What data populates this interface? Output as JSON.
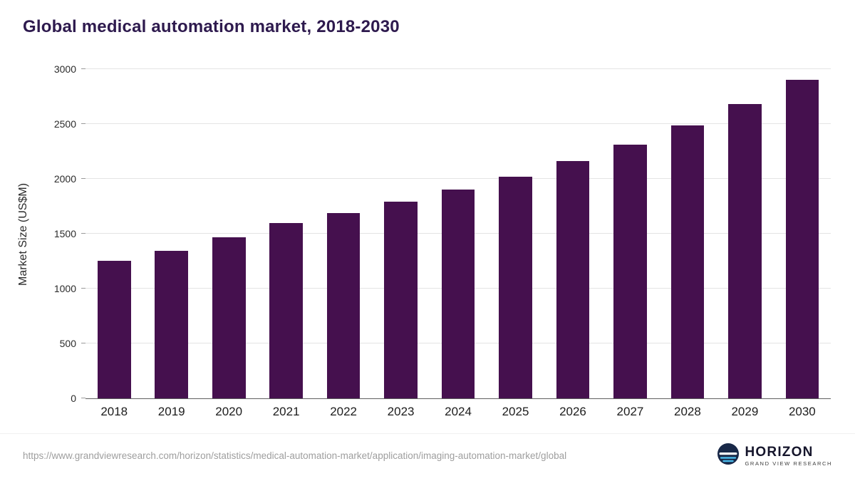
{
  "title": "Global medical automation market, 2018-2030",
  "colors": {
    "bar": "#45104e",
    "title_text": "#2e1a4e",
    "gridline": "#e4e4e4",
    "logo_circle": "#182848",
    "logo_wave": "#49b8e8"
  },
  "chart_data": {
    "type": "bar",
    "title": "Global medical automation market, 2018-2030",
    "categories": [
      "2018",
      "2019",
      "2020",
      "2021",
      "2022",
      "2023",
      "2024",
      "2025",
      "2026",
      "2027",
      "2028",
      "2029",
      "2030"
    ],
    "values": [
      1255,
      1345,
      1465,
      1595,
      1690,
      1790,
      1900,
      2020,
      2160,
      2310,
      2490,
      2680,
      2900
    ],
    "xlabel": "",
    "ylabel": "Market Size (US$M)",
    "ylim": [
      0,
      3000
    ],
    "yticks": [
      0,
      500,
      1000,
      1500,
      2000,
      2500,
      3000
    ],
    "grid": true,
    "legend": "none",
    "bar_color": "#45104e"
  },
  "footer": {
    "source_url": "https://www.grandviewresearch.com/horizon/statistics/medical-automation-market/application/imaging-automation-market/global",
    "logo_name": "HORIZON",
    "logo_sub": "GRAND VIEW RESEARCH"
  }
}
